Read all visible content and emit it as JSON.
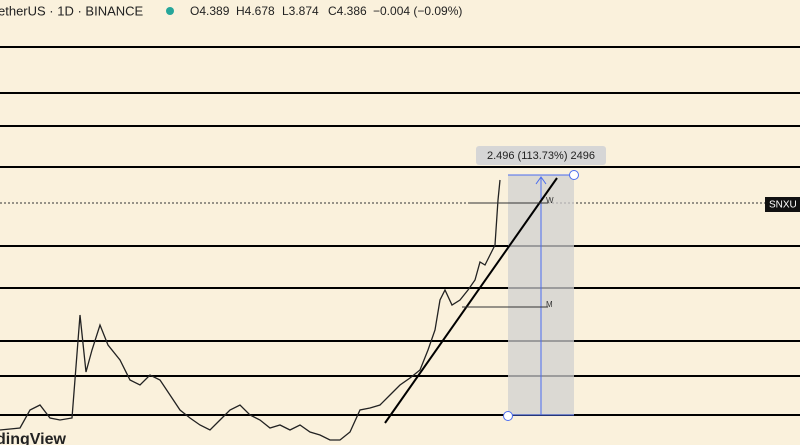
{
  "header": {
    "symbol": "etherUS · 1D · BINANCE",
    "open": "O4.389",
    "high": "H4.678",
    "low": "L3.874",
    "close": "C4.386",
    "change": "−0.004 (−0.09%)"
  },
  "measure": {
    "label": "2.496 (113.73%) 2496",
    "w": "W",
    "m": "M"
  },
  "price_tag": "SNXU",
  "watermark": "dingView"
}
